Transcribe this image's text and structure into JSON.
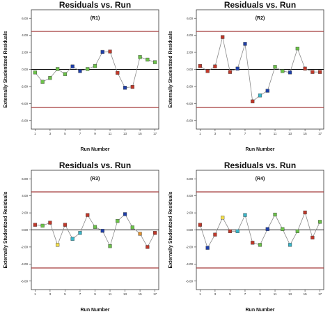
{
  "limit_color": "#a33a3a",
  "marker_colors": {
    "red": "#c0392b",
    "blue": "#1f3fa8",
    "green": "#6cc24a",
    "cyan": "#39b6c9",
    "yellow": "#f4e04d",
    "orange": "#e0912f"
  },
  "chart_data": [
    {
      "type": "scatter",
      "title": "Residuals vs. Run",
      "subtitle": "(R1)",
      "xlabel": "Run Number",
      "ylabel": "Externally Studentized Residuals",
      "xlim": [
        0.5,
        17.5
      ],
      "ylim": [
        -7,
        7
      ],
      "yticks": [
        "-6.00",
        "-4.00",
        "-2.00",
        "0.00",
        "2.00",
        "4.00",
        "6.00"
      ],
      "xticks": [
        "1",
        "3",
        "5",
        "7",
        "9",
        "11",
        "13",
        "15",
        "17"
      ],
      "reference_lines": [
        4.46,
        -4.46
      ],
      "x": [
        1,
        2,
        3,
        4,
        5,
        6,
        7,
        8,
        9,
        10,
        11,
        12,
        13,
        14,
        15,
        16,
        17
      ],
      "y": [
        -0.35,
        -1.45,
        -1.0,
        0.05,
        -0.55,
        0.35,
        -0.2,
        0.05,
        0.4,
        2.05,
        2.1,
        -0.4,
        -2.15,
        -2.05,
        1.45,
        1.15,
        0.85
      ],
      "colors": [
        "green",
        "green",
        "green",
        "green",
        "green",
        "blue",
        "blue",
        "green",
        "green",
        "blue",
        "red",
        "red",
        "blue",
        "red",
        "green",
        "green",
        "green"
      ]
    },
    {
      "type": "scatter",
      "title": "Residuals vs. Run",
      "subtitle": "(R2)",
      "xlabel": "Run Number",
      "ylabel": "Externally Studentized Residuals",
      "xlim": [
        0.5,
        17.5
      ],
      "ylim": [
        -7,
        7
      ],
      "yticks": [
        "-6.00",
        "-4.00",
        "-2.00",
        "0.00",
        "2.00",
        "4.00",
        "6.00"
      ],
      "xticks": [
        "1",
        "3",
        "5",
        "7",
        "9",
        "11",
        "13",
        "15",
        "17"
      ],
      "reference_lines": [
        4.46,
        -4.46
      ],
      "x": [
        1,
        2,
        3,
        4,
        5,
        6,
        7,
        8,
        9,
        10,
        11,
        12,
        13,
        14,
        15,
        16,
        17
      ],
      "y": [
        0.4,
        -0.2,
        0.35,
        3.8,
        -0.3,
        0.1,
        3.0,
        -3.75,
        -3.05,
        -2.5,
        0.3,
        -0.2,
        -0.35,
        2.45,
        0.1,
        -0.3,
        -0.3
      ],
      "colors": [
        "red",
        "red",
        "red",
        "red",
        "red",
        "blue",
        "blue",
        "red",
        "cyan",
        "blue",
        "green",
        "green",
        "blue",
        "green",
        "red",
        "red",
        "red"
      ]
    },
    {
      "type": "scatter",
      "title": "Residuals vs. Run",
      "subtitle": "(R3)",
      "xlabel": "Run Number",
      "ylabel": "Externally Studentized Residuals",
      "xlim": [
        0.5,
        17.5
      ],
      "ylim": [
        -7,
        7
      ],
      "yticks": [
        "-6.00",
        "-4.00",
        "-2.00",
        "0.00",
        "2.00",
        "4.00",
        "6.00"
      ],
      "xticks": [
        "1",
        "3",
        "5",
        "7",
        "9",
        "11",
        "13",
        "15",
        "17"
      ],
      "reference_lines": [
        4.46,
        -4.46
      ],
      "x": [
        1,
        2,
        3,
        4,
        5,
        6,
        7,
        8,
        9,
        10,
        11,
        12,
        13,
        14,
        15,
        16,
        17
      ],
      "y": [
        0.6,
        0.5,
        0.85,
        -1.75,
        0.6,
        -1.05,
        -0.35,
        1.75,
        0.35,
        -0.1,
        -1.9,
        1.05,
        1.85,
        0.3,
        -0.45,
        -2.0,
        -0.35
      ],
      "colors": [
        "red",
        "green",
        "red",
        "yellow",
        "red",
        "cyan",
        "cyan",
        "red",
        "green",
        "blue",
        "green",
        "green",
        "blue",
        "green",
        "orange",
        "red",
        "red"
      ]
    },
    {
      "type": "scatter",
      "title": "Residuals vs. Run",
      "subtitle": "(R4)",
      "xlabel": "Run Number",
      "ylabel": "Externally Studentized Residuals",
      "xlim": [
        0.5,
        17.5
      ],
      "ylim": [
        -7,
        7
      ],
      "yticks": [
        "-6.00",
        "-4.00",
        "-2.00",
        "0.00",
        "2.00",
        "4.00",
        "6.00"
      ],
      "xticks": [
        "1",
        "3",
        "5",
        "7",
        "9",
        "11",
        "13",
        "15",
        "17"
      ],
      "reference_lines": [
        4.46,
        -4.46
      ],
      "x": [
        1,
        2,
        3,
        4,
        5,
        6,
        7,
        8,
        9,
        10,
        11,
        12,
        13,
        14,
        15,
        16,
        17
      ],
      "y": [
        0.6,
        -2.1,
        -0.55,
        1.45,
        -0.15,
        -0.15,
        1.75,
        -1.5,
        -1.75,
        0.1,
        1.8,
        0.1,
        -1.75,
        -0.15,
        2.05,
        -0.9,
        0.95
      ],
      "colors": [
        "red",
        "blue",
        "red",
        "yellow",
        "red",
        "cyan",
        "cyan",
        "red",
        "green",
        "blue",
        "green",
        "green",
        "cyan",
        "green",
        "red",
        "red",
        "green"
      ]
    }
  ]
}
